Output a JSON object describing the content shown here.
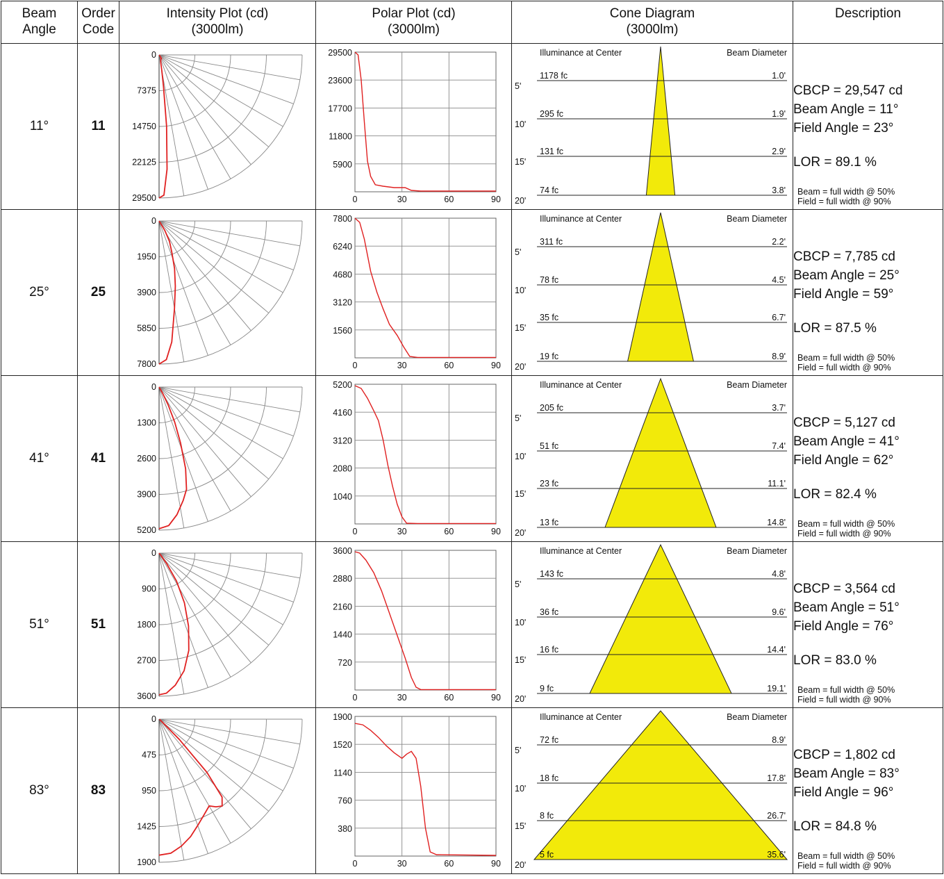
{
  "headers": {
    "beam_angle": [
      "Beam",
      "Angle"
    ],
    "order_code": [
      "Order",
      "Code"
    ],
    "intensity": [
      "Intensity Plot (cd)",
      "(3000lm)"
    ],
    "polar": [
      "Polar Plot (cd)",
      "(3000lm)"
    ],
    "cone": [
      "Cone Diagram",
      "(3000lm)"
    ],
    "description": [
      "Description"
    ]
  },
  "cone_labels": {
    "left": "Illuminance at Center",
    "right": "Beam Diameter"
  },
  "footnotes": {
    "beam": "Beam = full width @ 50%",
    "field": "Field = full width @ 90%"
  },
  "colors": {
    "curve": "#e02020",
    "cone_fill": "#f2ea0a",
    "grid": "#888888",
    "border": "#222222"
  },
  "rows": [
    {
      "beam_angle": "11°",
      "order_code": "11",
      "intensity_ticks": [
        "0",
        "7375",
        "14750",
        "22125",
        "29500"
      ],
      "polar_ticks": [
        "29500",
        "23600",
        "17700",
        "11800",
        "5900"
      ],
      "polar_xticks": [
        "0",
        "30",
        "60",
        "90"
      ],
      "curve": [
        [
          0,
          1.0
        ],
        [
          2,
          0.98
        ],
        [
          4,
          0.8
        ],
        [
          6,
          0.5
        ],
        [
          8,
          0.22
        ],
        [
          10,
          0.11
        ],
        [
          13,
          0.05
        ],
        [
          18,
          0.04
        ],
        [
          25,
          0.03
        ],
        [
          32,
          0.03
        ],
        [
          36,
          0.01
        ],
        [
          42,
          0.005
        ],
        [
          90,
          0.005
        ]
      ],
      "cone_half_angle": 5.5,
      "cone_rows": [
        {
          "dist": "5'",
          "fc": "1178 fc",
          "diam": "1.0'"
        },
        {
          "dist": "10'",
          "fc": "295 fc",
          "diam": "1.9'"
        },
        {
          "dist": "15'",
          "fc": "131 fc",
          "diam": "2.9'"
        },
        {
          "dist": "20'",
          "fc": "74 fc",
          "diam": "3.8'"
        }
      ],
      "description": {
        "cbcp": "CBCP = 29,547 cd",
        "beam": "Beam Angle = 11°",
        "field": "Field Angle = 23°",
        "lor": "LOR = 89.1 %"
      }
    },
    {
      "beam_angle": "25°",
      "order_code": "25",
      "intensity_ticks": [
        "0",
        "1950",
        "3900",
        "5850",
        "7800"
      ],
      "polar_ticks": [
        "7800",
        "6240",
        "4680",
        "3120",
        "1560"
      ],
      "polar_xticks": [
        "0",
        "30",
        "60",
        "90"
      ],
      "curve": [
        [
          0,
          1.0
        ],
        [
          3,
          0.97
        ],
        [
          6,
          0.85
        ],
        [
          10,
          0.62
        ],
        [
          14,
          0.47
        ],
        [
          18,
          0.35
        ],
        [
          22,
          0.24
        ],
        [
          27,
          0.16
        ],
        [
          31,
          0.08
        ],
        [
          35,
          0.01
        ],
        [
          40,
          0.003
        ],
        [
          90,
          0.003
        ]
      ],
      "cone_half_angle": 12.5,
      "cone_rows": [
        {
          "dist": "5'",
          "fc": "311 fc",
          "diam": "2.2'"
        },
        {
          "dist": "10'",
          "fc": "78 fc",
          "diam": "4.5'"
        },
        {
          "dist": "15'",
          "fc": "35 fc",
          "diam": "6.7'"
        },
        {
          "dist": "20'",
          "fc": "19 fc",
          "diam": "8.9'"
        }
      ],
      "description": {
        "cbcp": "CBCP = 7,785 cd",
        "beam": "Beam Angle = 25°",
        "field": "Field Angle = 59°",
        "lor": "LOR = 87.5 %"
      }
    },
    {
      "beam_angle": "41°",
      "order_code": "41",
      "intensity_ticks": [
        "0",
        "1300",
        "2600",
        "3900",
        "5200"
      ],
      "polar_ticks": [
        "5200",
        "4160",
        "3120",
        "2080",
        "1040"
      ],
      "polar_xticks": [
        "0",
        "30",
        "60",
        "90"
      ],
      "curve": [
        [
          0,
          0.99
        ],
        [
          4,
          0.97
        ],
        [
          8,
          0.9
        ],
        [
          12,
          0.81
        ],
        [
          15,
          0.74
        ],
        [
          18,
          0.6
        ],
        [
          21,
          0.42
        ],
        [
          24,
          0.27
        ],
        [
          27,
          0.14
        ],
        [
          30,
          0.05
        ],
        [
          33,
          0.005
        ],
        [
          40,
          0.003
        ],
        [
          90,
          0.003
        ]
      ],
      "cone_half_angle": 20.5,
      "cone_rows": [
        {
          "dist": "5'",
          "fc": "205 fc",
          "diam": "3.7'"
        },
        {
          "dist": "10'",
          "fc": "51 fc",
          "diam": "7.4'"
        },
        {
          "dist": "15'",
          "fc": "23 fc",
          "diam": "11.1'"
        },
        {
          "dist": "20'",
          "fc": "13 fc",
          "diam": "14.8'"
        }
      ],
      "description": {
        "cbcp": "CBCP = 5,127 cd",
        "beam": "Beam Angle = 41°",
        "field": "Field Angle = 62°",
        "lor": "LOR = 82.4 %"
      }
    },
    {
      "beam_angle": "51°",
      "order_code": "51",
      "intensity_ticks": [
        "0",
        "900",
        "1800",
        "2700",
        "3600"
      ],
      "polar_ticks": [
        "3600",
        "2880",
        "2160",
        "1440",
        "720"
      ],
      "polar_xticks": [
        "0",
        "30",
        "60",
        "90"
      ],
      "curve": [
        [
          0,
          0.99
        ],
        [
          3,
          0.98
        ],
        [
          7,
          0.93
        ],
        [
          12,
          0.84
        ],
        [
          17,
          0.71
        ],
        [
          22,
          0.55
        ],
        [
          27,
          0.39
        ],
        [
          32,
          0.23
        ],
        [
          36,
          0.09
        ],
        [
          39,
          0.02
        ],
        [
          42,
          0.003
        ],
        [
          90,
          0.003
        ]
      ],
      "cone_half_angle": 25.5,
      "cone_rows": [
        {
          "dist": "5'",
          "fc": "143 fc",
          "diam": "4.8'"
        },
        {
          "dist": "10'",
          "fc": "36 fc",
          "diam": "9.6'"
        },
        {
          "dist": "15'",
          "fc": "16 fc",
          "diam": "14.4'"
        },
        {
          "dist": "20'",
          "fc": "9 fc",
          "diam": "19.1'"
        }
      ],
      "description": {
        "cbcp": "CBCP = 3,564 cd",
        "beam": "Beam Angle = 51°",
        "field": "Field Angle = 76°",
        "lor": "LOR = 83.0 %"
      }
    },
    {
      "beam_angle": "83°",
      "order_code": "83",
      "intensity_ticks": [
        "0",
        "475",
        "950",
        "1425",
        "1900"
      ],
      "polar_ticks": [
        "1900",
        "1520",
        "1140",
        "760",
        "380"
      ],
      "polar_xticks": [
        "0",
        "30",
        "60",
        "90"
      ],
      "curve": [
        [
          0,
          0.95
        ],
        [
          5,
          0.94
        ],
        [
          10,
          0.9
        ],
        [
          15,
          0.85
        ],
        [
          20,
          0.79
        ],
        [
          25,
          0.74
        ],
        [
          30,
          0.7
        ],
        [
          33,
          0.73
        ],
        [
          36,
          0.75
        ],
        [
          39,
          0.7
        ],
        [
          42,
          0.5
        ],
        [
          45,
          0.2
        ],
        [
          48,
          0.03
        ],
        [
          52,
          0.01
        ],
        [
          90,
          0.005
        ]
      ],
      "cone_half_angle": 41.5,
      "cone_rows": [
        {
          "dist": "5'",
          "fc": "72 fc",
          "diam": "8.9'"
        },
        {
          "dist": "10'",
          "fc": "18 fc",
          "diam": "17.8'"
        },
        {
          "dist": "15'",
          "fc": "8 fc",
          "diam": "26.7'"
        },
        {
          "dist": "20'",
          "fc": "5 fc",
          "diam": "35.6'"
        }
      ],
      "description": {
        "cbcp": "CBCP = 1,802 cd",
        "beam": "Beam Angle = 83°",
        "field": "Field Angle = 96°",
        "lor": "LOR = 84.8 %"
      }
    }
  ]
}
